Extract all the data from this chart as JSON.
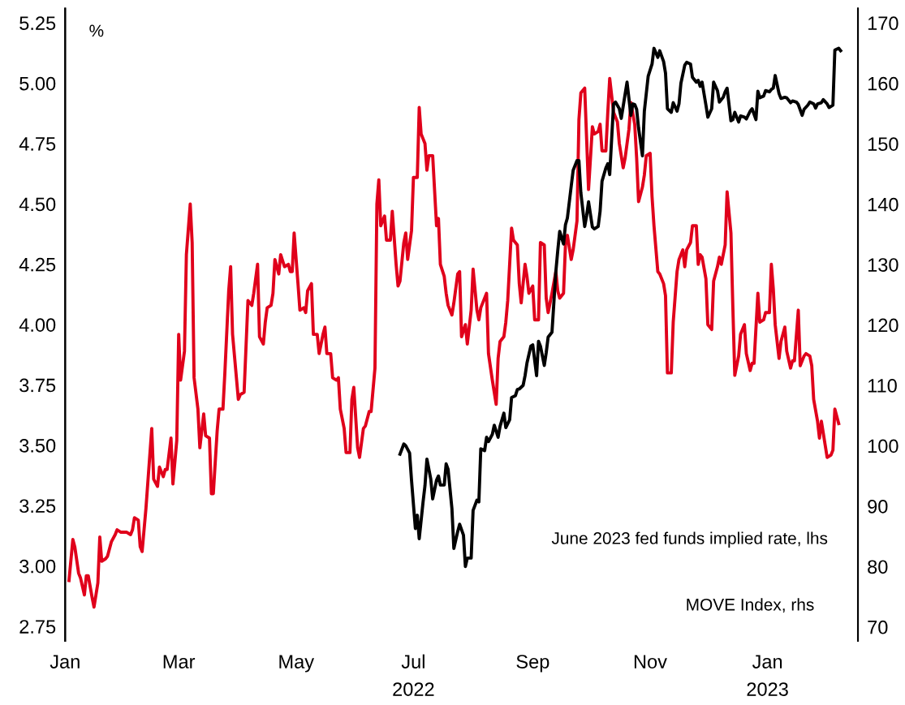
{
  "chart_data": {
    "type": "line",
    "ylabel": "%",
    "xlim": [
      "2022-01-01",
      "2023-02-17"
    ],
    "xticks": [
      {
        "value": "2022-01-01",
        "label": "Jan"
      },
      {
        "value": "2022-03-01",
        "label": "Mar"
      },
      {
        "value": "2022-05-01",
        "label": "May"
      },
      {
        "value": "2022-07-01",
        "label": "Jul\n2022"
      },
      {
        "value": "2022-09-01",
        "label": "Sep"
      },
      {
        "value": "2022-11-01",
        "label": "Nov"
      },
      {
        "value": "2023-01-01",
        "label": "Jan\n2023"
      }
    ],
    "ylim": [
      2.69,
      5.31
    ],
    "yticks": [
      {
        "value": 2.75,
        "label": "2.75"
      },
      {
        "value": 3,
        "label": "3.00"
      },
      {
        "value": 3.25,
        "label": "3.25"
      },
      {
        "value": 3.5,
        "label": "3.50"
      },
      {
        "value": 3.75,
        "label": "3.75"
      },
      {
        "value": 4,
        "label": "4.00"
      },
      {
        "value": 4.25,
        "label": "4.25"
      },
      {
        "value": 4.5,
        "label": "4.50"
      },
      {
        "value": 4.75,
        "label": "4.75"
      },
      {
        "value": 5,
        "label": "5.00"
      },
      {
        "value": 5.25,
        "label": "5.25"
      }
    ],
    "y2lim": [
      67.7,
      172.4
    ],
    "y2ticks": [
      70,
      80,
      90,
      100,
      110,
      120,
      130,
      140,
      150,
      160,
      170
    ],
    "grid": false,
    "marker": "none",
    "line_style": "solid",
    "annotations": [
      "June 2023 fed funds implied rate, lhs",
      "MOVE Index, rhs"
    ],
    "series": [
      {
        "color": "#e0001b",
        "x": [
          "2022-01-03",
          "2022-01-05",
          "2022-01-06",
          "2022-01-08",
          "2022-01-09",
          "2022-01-11",
          "2022-01-12",
          "2022-01-13",
          "2022-01-15",
          "2022-01-16",
          "2022-01-18",
          "2022-01-19",
          "2022-01-20",
          "2022-01-22",
          "2022-01-23",
          "2022-01-25",
          "2022-01-27",
          "2022-01-28",
          "2022-01-30",
          "2022-02-02",
          "2022-02-04",
          "2022-02-05",
          "2022-02-06",
          "2022-02-08",
          "2022-02-09",
          "2022-02-10",
          "2022-02-12",
          "2022-02-15",
          "2022-02-16",
          "2022-02-18",
          "2022-02-19",
          "2022-02-21",
          "2022-02-22",
          "2022-02-23",
          "2022-02-25",
          "2022-02-26",
          "2022-02-28",
          "2022-03-01",
          "2022-03-02",
          "2022-03-04",
          "2022-03-05",
          "2022-03-07",
          "2022-03-08",
          "2022-03-09",
          "2022-03-11",
          "2022-03-12",
          "2022-03-14",
          "2022-03-15",
          "2022-03-17",
          "2022-03-18",
          "2022-03-19",
          "2022-03-21",
          "2022-03-22",
          "2022-03-24",
          "2022-03-25",
          "2022-03-27",
          "2022-03-28",
          "2022-03-29",
          "2022-04-01",
          "2022-04-02",
          "2022-04-04",
          "2022-04-06",
          "2022-04-08",
          "2022-04-09",
          "2022-04-11",
          "2022-04-12",
          "2022-04-14",
          "2022-04-15",
          "2022-04-16",
          "2022-04-18",
          "2022-04-19",
          "2022-04-20",
          "2022-04-22",
          "2022-04-23",
          "2022-04-25",
          "2022-04-27",
          "2022-04-28",
          "2022-04-29",
          "2022-04-30",
          "2022-05-02",
          "2022-05-03",
          "2022-05-05",
          "2022-05-06",
          "2022-05-07",
          "2022-05-09",
          "2022-05-10",
          "2022-05-12",
          "2022-05-13",
          "2022-05-15",
          "2022-05-16",
          "2022-05-17",
          "2022-05-19",
          "2022-05-20",
          "2022-05-22",
          "2022-05-23",
          "2022-05-24",
          "2022-05-26",
          "2022-05-27",
          "2022-05-29",
          "2022-05-30",
          "2022-05-31",
          "2022-06-02",
          "2022-06-03",
          "2022-06-05",
          "2022-06-06",
          "2022-06-08",
          "2022-06-09",
          "2022-06-11",
          "2022-06-12",
          "2022-06-13",
          "2022-06-14",
          "2022-06-16",
          "2022-06-17",
          "2022-06-19",
          "2022-06-20",
          "2022-06-22",
          "2022-06-23",
          "2022-06-24",
          "2022-06-26",
          "2022-06-27",
          "2022-06-28",
          "2022-06-30",
          "2022-07-01",
          "2022-07-03",
          "2022-07-04",
          "2022-07-05",
          "2022-07-07",
          "2022-07-08",
          "2022-07-09",
          "2022-07-11",
          "2022-07-13",
          "2022-07-14",
          "2022-07-15",
          "2022-07-17",
          "2022-07-18",
          "2022-07-19",
          "2022-07-21",
          "2022-07-22",
          "2022-07-24",
          "2022-07-25",
          "2022-07-26",
          "2022-07-28",
          "2022-07-29",
          "2022-07-31",
          "2022-08-01",
          "2022-08-03",
          "2022-08-04",
          "2022-08-05",
          "2022-08-08",
          "2022-08-09",
          "2022-08-11",
          "2022-08-13",
          "2022-08-14",
          "2022-08-15",
          "2022-08-17",
          "2022-08-18",
          "2022-08-19",
          "2022-08-21",
          "2022-08-22",
          "2022-08-24",
          "2022-08-25",
          "2022-08-26",
          "2022-08-28",
          "2022-08-29",
          "2022-08-30",
          "2022-09-01",
          "2022-09-02",
          "2022-09-04",
          "2022-09-05",
          "2022-09-07",
          "2022-09-08",
          "2022-09-09",
          "2022-09-11",
          "2022-09-13",
          "2022-09-14",
          "2022-09-15",
          "2022-09-17",
          "2022-09-18",
          "2022-09-19",
          "2022-09-21",
          "2022-09-22",
          "2022-09-24",
          "2022-09-25",
          "2022-09-26",
          "2022-09-28",
          "2022-09-29",
          "2022-09-30",
          "2022-10-02",
          "2022-10-03",
          "2022-10-05",
          "2022-10-06",
          "2022-10-07",
          "2022-10-09",
          "2022-10-10",
          "2022-10-11",
          "2022-10-13",
          "2022-10-15",
          "2022-10-16",
          "2022-10-18",
          "2022-10-19",
          "2022-10-21",
          "2022-10-22",
          "2022-10-24",
          "2022-10-25",
          "2022-10-26",
          "2022-10-28",
          "2022-10-29",
          "2022-10-30",
          "2022-11-01",
          "2022-11-02",
          "2022-11-03",
          "2022-11-05",
          "2022-11-06",
          "2022-11-08",
          "2022-11-09",
          "2022-11-10",
          "2022-11-12",
          "2022-11-13",
          "2022-11-15",
          "2022-11-16",
          "2022-11-18",
          "2022-11-19",
          "2022-11-20",
          "2022-11-22",
          "2022-11-23",
          "2022-11-25",
          "2022-11-26",
          "2022-11-27",
          "2022-11-28",
          "2022-11-30",
          "2022-12-01",
          "2022-12-03",
          "2022-12-04",
          "2022-12-06",
          "2022-12-07",
          "2022-12-08",
          "2022-12-10",
          "2022-12-11",
          "2022-12-13",
          "2022-12-14",
          "2022-12-15",
          "2022-12-17",
          "2022-12-18",
          "2022-12-20",
          "2022-12-21",
          "2022-12-23",
          "2022-12-24",
          "2022-12-25",
          "2022-12-27",
          "2022-12-28",
          "2022-12-30",
          "2022-12-31",
          "2023-01-02",
          "2023-01-03",
          "2023-01-04",
          "2023-01-05",
          "2023-01-07",
          "2023-01-08",
          "2023-01-10",
          "2023-01-11",
          "2023-01-13",
          "2023-01-14",
          "2023-01-15",
          "2023-01-17",
          "2023-01-18",
          "2023-01-20",
          "2023-01-21",
          "2023-01-23",
          "2023-01-24",
          "2023-01-25",
          "2023-01-27",
          "2023-01-28",
          "2023-01-29",
          "2023-01-31",
          "2023-02-01",
          "2023-02-03",
          "2023-02-04",
          "2023-02-05",
          "2023-02-07"
        ],
        "values": [
          2.94,
          3.11,
          3.08,
          2.97,
          2.95,
          2.88,
          2.96,
          2.96,
          2.87,
          2.83,
          2.93,
          3.12,
          3.02,
          3.03,
          3.04,
          3.1,
          3.13,
          3.15,
          3.14,
          3.14,
          3.13,
          3.15,
          3.2,
          3.19,
          3.08,
          3.06,
          3.24,
          3.57,
          3.36,
          3.33,
          3.41,
          3.37,
          3.4,
          3.4,
          3.53,
          3.34,
          3.52,
          3.96,
          3.77,
          3.89,
          4.29,
          4.5,
          4.34,
          3.78,
          3.65,
          3.49,
          3.63,
          3.54,
          3.53,
          3.3,
          3.3,
          3.56,
          3.65,
          3.65,
          3.8,
          4.14,
          4.24,
          3.96,
          3.69,
          3.71,
          3.72,
          4.1,
          4.08,
          4.13,
          4.25,
          3.95,
          3.92,
          4.01,
          4.07,
          4.08,
          4.13,
          4.27,
          4.21,
          4.29,
          4.24,
          4.25,
          4.22,
          4.22,
          4.38,
          4.17,
          4.06,
          4.07,
          4.05,
          4.14,
          4.17,
          3.96,
          3.96,
          3.88,
          3.96,
          3.99,
          3.88,
          3.88,
          3.78,
          3.77,
          3.78,
          3.65,
          3.57,
          3.47,
          3.47,
          3.69,
          3.74,
          3.49,
          3.45,
          3.57,
          3.58,
          3.64,
          3.64,
          3.82,
          4.5,
          4.6,
          4.41,
          4.45,
          4.35,
          4.35,
          4.47,
          4.25,
          4.16,
          4.18,
          4.34,
          4.38,
          4.27,
          4.39,
          4.61,
          4.61,
          4.9,
          4.79,
          4.75,
          4.64,
          4.7,
          4.7,
          4.41,
          4.44,
          4.25,
          4.2,
          4.13,
          4.08,
          4.04,
          4.09,
          4.21,
          4.22,
          3.95,
          4.0,
          3.92,
          4.06,
          4.23,
          4.06,
          4.02,
          4.07,
          4.13,
          3.88,
          3.77,
          3.67,
          3.86,
          3.93,
          3.95,
          4.01,
          4.1,
          4.4,
          4.35,
          4.33,
          4.17,
          4.09,
          4.25,
          4.2,
          4.13,
          4.16,
          4.02,
          4.02,
          4.34,
          4.33,
          4.11,
          4.05,
          4.13,
          4.22,
          4.14,
          4.11,
          4.13,
          4.33,
          4.37,
          4.27,
          4.31,
          4.43,
          4.85,
          4.96,
          4.98,
          4.77,
          4.56,
          4.82,
          4.79,
          4.8,
          4.83,
          4.72,
          4.72,
          4.88,
          5.02,
          4.88,
          4.84,
          4.75,
          4.65,
          4.69,
          4.81,
          4.92,
          4.83,
          4.69,
          4.51,
          4.57,
          4.62,
          4.7,
          4.71,
          4.53,
          4.41,
          4.22,
          4.21,
          4.17,
          4.12,
          3.8,
          3.8,
          4.01,
          4.22,
          4.27,
          4.31,
          4.24,
          4.31,
          4.34,
          4.41,
          4.41,
          4.25,
          4.29,
          4.28,
          4.19,
          4.0,
          3.98,
          4.18,
          4.24,
          4.28,
          4.25,
          4.33,
          4.55,
          4.38,
          4.07,
          3.79,
          3.87,
          3.96,
          4.0,
          3.88,
          3.81,
          3.84,
          3.84,
          4.13,
          4.01,
          4.02,
          4.05,
          4.05,
          4.25,
          4.15,
          4.0,
          3.86,
          3.93,
          3.99,
          3.89,
          3.82,
          3.85,
          3.85,
          4.06,
          3.83,
          3.87,
          3.88,
          3.87,
          3.83,
          3.69,
          3.6,
          3.53,
          3.6,
          3.5,
          3.45,
          3.46,
          3.48,
          3.65,
          3.59
        ]
      },
      {
        "color": "#000000",
        "axis": "y2",
        "x": [
          "2022-06-24",
          "2022-06-26",
          "2022-06-27",
          "2022-06-29",
          "2022-06-30",
          "2022-07-02",
          "2022-07-03",
          "2022-07-04",
          "2022-07-06",
          "2022-07-07",
          "2022-07-08",
          "2022-07-10",
          "2022-07-11",
          "2022-07-13",
          "2022-07-14",
          "2022-07-15",
          "2022-07-17",
          "2022-07-18",
          "2022-07-19",
          "2022-07-21",
          "2022-07-22",
          "2022-07-24",
          "2022-07-25",
          "2022-07-27",
          "2022-07-28",
          "2022-07-29",
          "2022-07-31",
          "2022-08-01",
          "2022-08-03",
          "2022-08-04",
          "2022-08-05",
          "2022-08-07",
          "2022-08-08",
          "2022-08-09",
          "2022-08-11",
          "2022-08-12",
          "2022-08-14",
          "2022-08-15",
          "2022-08-17",
          "2022-08-18",
          "2022-08-20",
          "2022-08-21",
          "2022-08-23",
          "2022-08-24",
          "2022-08-25",
          "2022-08-27",
          "2022-08-28",
          "2022-08-29",
          "2022-08-31",
          "2022-09-01",
          "2022-09-03",
          "2022-09-04",
          "2022-09-05",
          "2022-09-07",
          "2022-09-08",
          "2022-09-09",
          "2022-09-11",
          "2022-09-13",
          "2022-09-14",
          "2022-09-15",
          "2022-09-17",
          "2022-09-18",
          "2022-09-19",
          "2022-09-21",
          "2022-09-22",
          "2022-09-24",
          "2022-09-25",
          "2022-09-26",
          "2022-09-28",
          "2022-09-29",
          "2022-09-30",
          "2022-10-02",
          "2022-10-03",
          "2022-10-05",
          "2022-10-06",
          "2022-10-07",
          "2022-10-09",
          "2022-10-10",
          "2022-10-11",
          "2022-10-13",
          "2022-10-14",
          "2022-10-16",
          "2022-10-17",
          "2022-10-19",
          "2022-10-20",
          "2022-10-22",
          "2022-10-23",
          "2022-10-24",
          "2022-10-25",
          "2022-10-26",
          "2022-10-28",
          "2022-10-29",
          "2022-10-30",
          "2022-10-31",
          "2022-11-02",
          "2022-11-03",
          "2022-11-05",
          "2022-11-06",
          "2022-11-08",
          "2022-11-09",
          "2022-11-10",
          "2022-11-12",
          "2022-11-13",
          "2022-11-15",
          "2022-11-16",
          "2022-11-17",
          "2022-11-19",
          "2022-11-20",
          "2022-11-22",
          "2022-11-23",
          "2022-11-25",
          "2022-11-26",
          "2022-11-27",
          "2022-11-28",
          "2022-11-30",
          "2022-12-01",
          "2022-12-03",
          "2022-12-04",
          "2022-12-06",
          "2022-12-07",
          "2022-12-09",
          "2022-12-10",
          "2022-12-11",
          "2022-12-13",
          "2022-12-14",
          "2022-12-15",
          "2022-12-17",
          "2022-12-18",
          "2022-12-20",
          "2022-12-21",
          "2022-12-23",
          "2022-12-24",
          "2022-12-26",
          "2022-12-27",
          "2022-12-28",
          "2022-12-30",
          "2022-12-31",
          "2023-01-02",
          "2023-01-03",
          "2023-01-04",
          "2023-01-05",
          "2023-01-07",
          "2023-01-08",
          "2023-01-10",
          "2023-01-11",
          "2023-01-13",
          "2023-01-14",
          "2023-01-16",
          "2023-01-17",
          "2023-01-19",
          "2023-01-20",
          "2023-01-22",
          "2023-01-23",
          "2023-01-25",
          "2023-01-26",
          "2023-01-27",
          "2023-01-29",
          "2023-01-30",
          "2023-02-01",
          "2023-02-02",
          "2023-02-04",
          "2023-02-05",
          "2023-02-07",
          "2023-02-08"
        ],
        "values": [
          98.6,
          100.3,
          100.0,
          98.8,
          94.3,
          86.3,
          88.5,
          84.6,
          90.7,
          93.4,
          97.8,
          94.5,
          91.2,
          94.3,
          95.0,
          93.5,
          93.5,
          97.0,
          96.1,
          89.6,
          83.0,
          85.8,
          87.0,
          85.2,
          80.0,
          81.4,
          81.4,
          89.3,
          91.0,
          90.7,
          99.5,
          99.2,
          101.4,
          100.7,
          101.9,
          103.4,
          101.4,
          103.2,
          105.4,
          103.0,
          104.3,
          108.0,
          108.3,
          109.3,
          109.4,
          110.0,
          111.6,
          113.7,
          116.5,
          116.7,
          111.6,
          117.3,
          116.5,
          113.3,
          115.4,
          118.0,
          118.8,
          128.8,
          132.3,
          135.5,
          133.4,
          136.6,
          137.7,
          143.0,
          145.6,
          147.2,
          147.2,
          141.9,
          136.3,
          138.1,
          140.4,
          136.2,
          135.9,
          136.3,
          138.8,
          143.8,
          146.0,
          146.7,
          144.9,
          156.6,
          156.9,
          155.8,
          154.2,
          158.2,
          160.2,
          154.7,
          156.6,
          156.5,
          155.7,
          152.6,
          148.0,
          155.4,
          158.3,
          161.2,
          163.2,
          165.8,
          164.3,
          165.4,
          163.6,
          161.7,
          155.8,
          155.2,
          156.8,
          155.4,
          156.6,
          160.0,
          163.0,
          163.5,
          163.2,
          161.0,
          160.2,
          160.5,
          159.5,
          160.2,
          156.4,
          154.4,
          155.8,
          160.2,
          158.8,
          156.9,
          157.7,
          158.6,
          159.2,
          153.8,
          154.0,
          155.2,
          153.6,
          154.6,
          154.4,
          154.1,
          155.4,
          155.8,
          154.0,
          158.7,
          157.6,
          157.9,
          158.8,
          158.6,
          159.0,
          159.2,
          161.3,
          158.3,
          157.5,
          157.7,
          157.6,
          156.8,
          157.1,
          156.9,
          156.5,
          154.7,
          155.7,
          156.4,
          156.9,
          156.6,
          155.9,
          156.6,
          156.8,
          157.3,
          156.6,
          156.0,
          156.4,
          165.5,
          165.8,
          165.4
        ]
      }
    ]
  }
}
